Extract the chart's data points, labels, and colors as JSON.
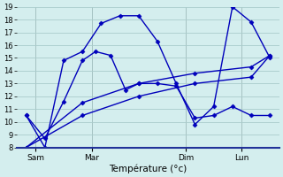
{
  "background_color": "#d4eeee",
  "grid_color": "#aacccc",
  "line_color": "#0000bb",
  "xlabel": "Température (°c)",
  "ylim": [
    8,
    19
  ],
  "yticks": [
    8,
    9,
    10,
    11,
    12,
    13,
    14,
    15,
    16,
    17,
    18,
    19
  ],
  "xlim": [
    0,
    14
  ],
  "xtick_positions": [
    1,
    4,
    9,
    12
  ],
  "xtick_labels": [
    "Sam",
    "Mar",
    "Dim",
    "Lun"
  ],
  "vline_positions": [
    1,
    4,
    9,
    12
  ],
  "series": [
    {
      "x": [
        0.5,
        1.5,
        2.5,
        3.5,
        4.2,
        5.0,
        5.8,
        6.5,
        7.5,
        8.5,
        9.5,
        10.5,
        11.5,
        12.5,
        13.5
      ],
      "y": [
        10.5,
        8.7,
        11.6,
        14.8,
        15.5,
        15.2,
        12.5,
        13.0,
        13.0,
        12.8,
        10.3,
        10.5,
        11.2,
        10.5,
        10.5
      ]
    },
    {
      "x": [
        0.5,
        1.5,
        2.5,
        3.5,
        4.5,
        5.5,
        6.5,
        7.5,
        8.5,
        9.5,
        10.5,
        11.5,
        12.5,
        13.5
      ],
      "y": [
        10.5,
        8.0,
        14.8,
        15.5,
        17.7,
        18.3,
        18.3,
        16.3,
        13.0,
        9.8,
        11.2,
        19.0,
        17.8,
        15.0
      ]
    },
    {
      "x": [
        0.5,
        3.5,
        6.5,
        9.5,
        12.5,
        13.5
      ],
      "y": [
        8.0,
        11.5,
        13.0,
        13.8,
        14.3,
        15.2
      ]
    },
    {
      "x": [
        0.5,
        3.5,
        6.5,
        9.5,
        12.5,
        13.5
      ],
      "y": [
        8.0,
        10.5,
        12.0,
        13.0,
        13.5,
        15.2
      ]
    }
  ]
}
